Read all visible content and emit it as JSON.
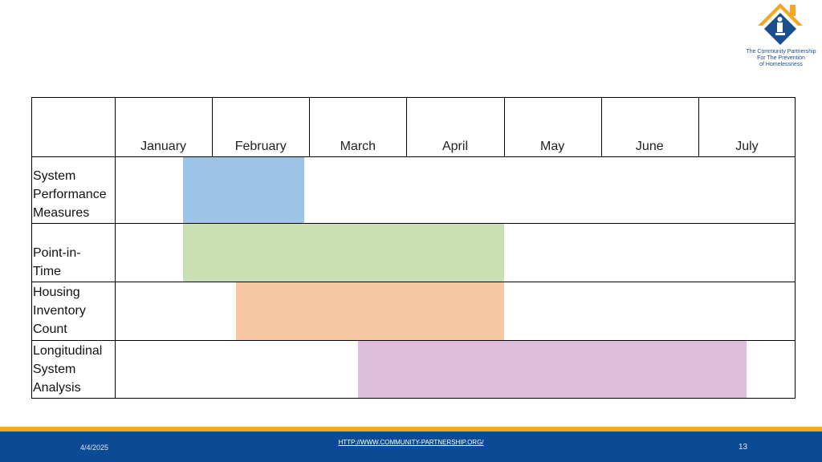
{
  "logo": {
    "org_line1": "The Community Partnership",
    "org_line2": "For The Prevention",
    "org_line3": "of Homelessness"
  },
  "schedule": {
    "months": [
      "January",
      "February",
      "March",
      "April",
      "May",
      "June",
      "July"
    ],
    "rows": [
      {
        "label_lines": [
          "System",
          "Performance",
          "Measures"
        ],
        "color": "#9dc3e6",
        "start_month": 0.7,
        "end_month": 1.95
      },
      {
        "label_lines": [
          "Point-in-",
          "Time"
        ],
        "color": "#c9e0b5",
        "start_month": 0.7,
        "end_month": 4.0
      },
      {
        "label_lines": [
          "Housing",
          "Inventory",
          "Count"
        ],
        "color": "#f7c7a3",
        "start_month": 1.25,
        "end_month": 4.0
      },
      {
        "label_lines": [
          "Longitudinal",
          "System",
          "Analysis"
        ],
        "color": "#dfbedd",
        "start_month": 2.5,
        "end_month": 6.5
      }
    ]
  },
  "footer": {
    "date": "4/4/2025",
    "url": "HTTP://WWW.COMMUNITY-PARTNERSHIP.ORG/",
    "page": "13"
  },
  "colors": {
    "accent_yellow": "#f5a623",
    "footer_blue": "#0d4a94"
  }
}
